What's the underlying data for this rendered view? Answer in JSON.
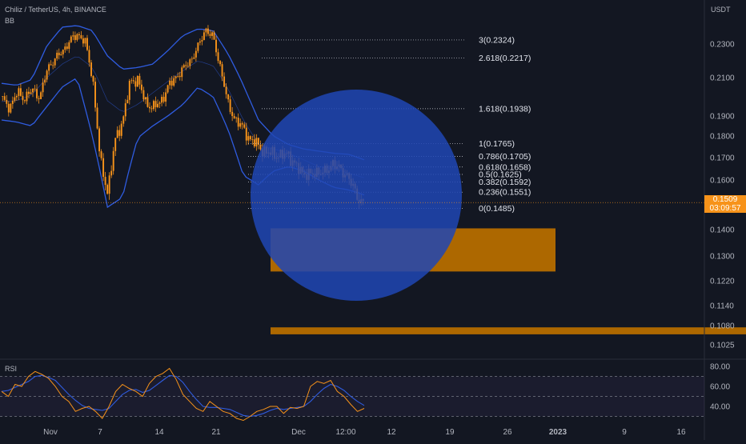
{
  "header": {
    "symbol": "Chiliz / TetherUS, 4h, BINANCE",
    "indicator": "BB",
    "rsi_label": "RSI"
  },
  "price_axis": {
    "currency": "USDT",
    "last_price": "0.1509",
    "countdown": "03:09:57"
  },
  "colors": {
    "background": "#131722",
    "candle": "#f7931a",
    "bands": "#2f5ce0",
    "circle": "#2046b4",
    "zone": "#ad6800",
    "rsi_line": "#f7931a",
    "rsi_ma": "#2f5ce0"
  },
  "chart_data": [
    {
      "type": "line",
      "title": "Chiliz / TetherUS, 4h, BINANCE",
      "y_ticks": [
        0.23,
        0.21,
        0.19,
        0.18,
        0.17,
        0.16,
        0.14,
        0.13,
        0.122,
        0.114,
        0.108,
        0.1025
      ],
      "y_tick_labels": [
        "0.2300",
        "0.2100",
        "0.1900",
        "0.1800",
        "0.1700",
        "0.1600",
        "0.1400",
        "0.1300",
        "0.1220",
        "0.1140",
        "0.1080",
        "0.1025"
      ],
      "x_tick_labels": [
        "Nov",
        "7",
        "14",
        "21",
        "Dec",
        "12:00",
        "12",
        "19",
        "26",
        "2023",
        "9",
        "16"
      ],
      "price_path": [
        [
          0.1985,
          0.1945
        ],
        [
          0.2025,
          0.199
        ],
        [
          0.204,
          0.1995
        ],
        [
          0.216,
          0.221
        ],
        [
          0.226,
          0.232
        ],
        [
          0.236,
          0.231
        ],
        [
          0.209,
          0.168
        ],
        [
          0.155,
          0.178
        ],
        [
          0.188,
          0.208
        ],
        [
          0.209,
          0.197
        ],
        [
          0.1945,
          0.197
        ],
        [
          0.205,
          0.21
        ],
        [
          0.215,
          0.22
        ],
        [
          0.228,
          0.239
        ],
        [
          0.234,
          0.216
        ],
        [
          0.196,
          0.188
        ],
        [
          0.184,
          0.178
        ],
        [
          0.176,
          0.172
        ],
        [
          0.172,
          0.1705
        ],
        [
          0.172,
          0.166
        ],
        [
          0.1635,
          0.162
        ],
        [
          0.164,
          0.163
        ],
        [
          0.168,
          0.164
        ],
        [
          0.162,
          0.154
        ],
        [
          0.1509
        ]
      ],
      "upper_band": [
        0.207,
        0.206,
        0.209,
        0.229,
        0.24,
        0.241,
        0.238,
        0.223,
        0.215,
        0.216,
        0.218,
        0.226,
        0.235,
        0.239,
        0.238,
        0.224,
        0.206,
        0.188,
        0.18,
        0.176,
        0.174,
        0.173,
        0.172,
        0.1715,
        0.169
      ],
      "lower_band": [
        0.188,
        0.187,
        0.185,
        0.195,
        0.205,
        0.21,
        0.18,
        0.149,
        0.153,
        0.179,
        0.185,
        0.19,
        0.196,
        0.205,
        0.2,
        0.183,
        0.162,
        0.158,
        0.164,
        0.166,
        0.164,
        0.16,
        0.157,
        0.156,
        0.154
      ],
      "middle_band": [
        0.1975,
        0.198,
        0.201,
        0.21,
        0.218,
        0.223,
        0.216,
        0.198,
        0.192,
        0.196,
        0.202,
        0.208,
        0.214,
        0.22,
        0.217,
        0.204,
        0.188,
        0.176,
        0.174,
        0.172,
        0.169,
        0.166,
        0.165,
        0.163,
        0.161
      ],
      "fibonacci": [
        {
          "label": "3(0.2324)",
          "value": 0.2324
        },
        {
          "label": "2.618(0.2217)",
          "value": 0.2217
        },
        {
          "label": "1.618(0.1938)",
          "value": 0.1938
        },
        {
          "label": "1(0.1765)",
          "value": 0.1765
        },
        {
          "label": "0.786(0.1705)",
          "value": 0.1705
        },
        {
          "label": "0.618(0.1658)",
          "value": 0.1658
        },
        {
          "label": "0.5(0.1625)",
          "value": 0.1625
        },
        {
          "label": "0.382(0.1592)",
          "value": 0.1592
        },
        {
          "label": "0.236(0.1551)",
          "value": 0.1551
        },
        {
          "label": "0(0.1485)",
          "value": 0.1485
        }
      ],
      "zones": [
        {
          "from": 0.125,
          "to": 0.1405
        },
        {
          "from": 0.1055,
          "to": 0.1075
        }
      ],
      "last_price": 0.1509
    },
    {
      "type": "line",
      "title": "RSI",
      "y_ticks": [
        80,
        60,
        40
      ],
      "y_tick_labels": [
        "80.00",
        "60.00",
        "40.00"
      ],
      "levels": [
        70,
        50,
        30
      ],
      "rsi": [
        55,
        50,
        62,
        60,
        70,
        75,
        72,
        68,
        60,
        50,
        45,
        35,
        38,
        40,
        35,
        28,
        40,
        55,
        62,
        58,
        55,
        50,
        63,
        70,
        73,
        78,
        67,
        52,
        45,
        38,
        35,
        45,
        40,
        35,
        33,
        28,
        26,
        30,
        35,
        37,
        40,
        40,
        33,
        39,
        38,
        40,
        60,
        65,
        63,
        66,
        55,
        50,
        42,
        35,
        38
      ],
      "rsi_ma": [
        55,
        56,
        59,
        62,
        65,
        70,
        71,
        69,
        66,
        59,
        52,
        46,
        41,
        38,
        37,
        36,
        38,
        45,
        52,
        56,
        57,
        54,
        56,
        61,
        66,
        71,
        70,
        64,
        55,
        47,
        40,
        39,
        39,
        38,
        37,
        34,
        31,
        30,
        31,
        33,
        36,
        38,
        37,
        38,
        39,
        40,
        45,
        52,
        58,
        62,
        60,
        56,
        50,
        45,
        41
      ]
    }
  ]
}
